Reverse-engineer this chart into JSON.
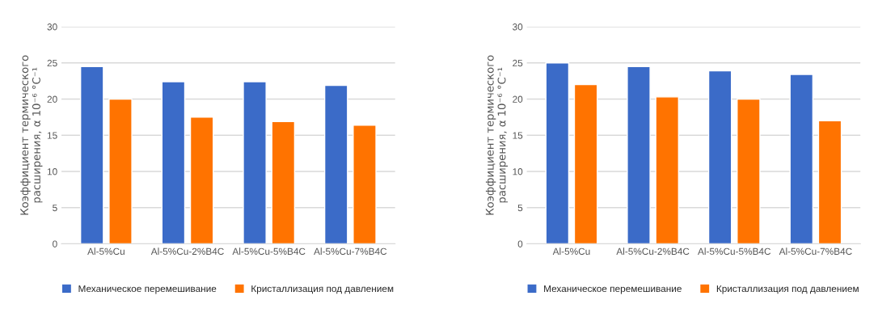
{
  "chart_data": [
    {
      "type": "bar",
      "ylabel": "Коэффициент термического\nрасширения, α 10⁻⁶ °C⁻¹",
      "categories": [
        "Al-5%Cu",
        "Al-5%Cu-2%B4C",
        "Al-5%Cu-5%B4C",
        "Al-5%Cu-7%B4C"
      ],
      "series": [
        {
          "name": "Механическое перемешивание",
          "color": "#3b6bc8",
          "values": [
            24.5,
            22.4,
            22.4,
            21.9
          ]
        },
        {
          "name": "Кристаллизация под давлением",
          "color": "#ff7300",
          "values": [
            20,
            17.5,
            16.9,
            16.4
          ]
        }
      ],
      "ylim": [
        0,
        30
      ],
      "yticks": [
        0,
        5,
        10,
        15,
        20,
        25,
        30
      ],
      "grid": "y",
      "legend": "bottom"
    },
    {
      "type": "bar",
      "ylabel": "Коэффициент термического\nрасширения, α 10⁻⁶ °C⁻¹",
      "categories": [
        "Al-5%Cu",
        "Al-5%Cu-2%B4C",
        "Al-5%Cu-5%B4C",
        "Al-5%Cu-7%B4C"
      ],
      "series": [
        {
          "name": "Механическое перемешивание",
          "color": "#3b6bc8",
          "values": [
            25,
            24.5,
            23.9,
            23.4
          ]
        },
        {
          "name": "Кристаллизация под давлением",
          "color": "#ff7300",
          "values": [
            22,
            20.3,
            20,
            17
          ]
        }
      ],
      "ylim": [
        0,
        30
      ],
      "yticks": [
        0,
        5,
        10,
        15,
        20,
        25,
        30
      ],
      "grid": "y",
      "legend": "bottom"
    }
  ]
}
